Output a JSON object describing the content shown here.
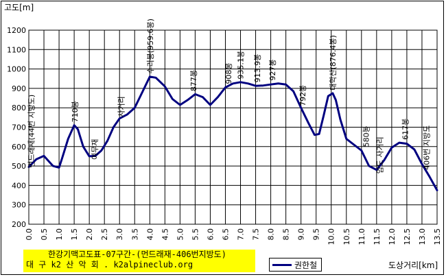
{
  "chart_data": {
    "type": "line",
    "ylabel": "고도[m]",
    "xlabel": "도상거리[km]",
    "ylim": [
      200,
      1200
    ],
    "xlim": [
      0,
      13.5
    ],
    "y_ticks": [
      "200",
      "300",
      "400",
      "500",
      "600",
      "700",
      "800",
      "900",
      "1000",
      "1100",
      "1200"
    ],
    "x_ticks": [
      "0.0",
      "0.5",
      "1.0",
      "1.5",
      "2.0",
      "2.5",
      "3.0",
      "3.5",
      "4.0",
      "4.5",
      "5.0",
      "5.5",
      "6.0",
      "6.5",
      "7.0",
      "7.5",
      "8.0",
      "8.5",
      "9.0",
      "9.5",
      "10.0",
      "10.5",
      "11.0",
      "11.5",
      "12.0",
      "12.5",
      "13.0",
      "13.5"
    ],
    "grid": true,
    "series": [
      {
        "name": "권한철",
        "color": "#000080",
        "x": [
          0,
          0.25,
          0.5,
          0.8,
          1.0,
          1.1,
          1.3,
          1.5,
          1.62,
          1.8,
          2.0,
          2.2,
          2.4,
          2.6,
          2.8,
          3.0,
          3.25,
          3.5,
          3.75,
          4.0,
          4.2,
          4.5,
          4.75,
          5.0,
          5.25,
          5.5,
          5.75,
          6.0,
          6.25,
          6.5,
          6.75,
          7.0,
          7.25,
          7.5,
          7.75,
          8.0,
          8.25,
          8.5,
          8.75,
          9.0,
          9.25,
          9.45,
          9.6,
          9.75,
          9.9,
          10.05,
          10.15,
          10.3,
          10.5,
          10.75,
          11.0,
          11.25,
          11.5,
          11.75,
          12.0,
          12.25,
          12.5,
          12.75,
          13.0,
          13.25,
          13.5
        ],
        "y": [
          495,
          535,
          552,
          500,
          492,
          540,
          640,
          710,
          690,
          600,
          550,
          552,
          580,
          630,
          700,
          745,
          765,
          800,
          880,
          960,
          955,
          910,
          845,
          815,
          840,
          870,
          855,
          815,
          855,
          905,
          925,
          932,
          925,
          913,
          915,
          920,
          925,
          920,
          885,
          800,
          720,
          660,
          665,
          760,
          860,
          875,
          840,
          740,
          640,
          610,
          580,
          500,
          480,
          530,
          595,
          620,
          615,
          585,
          510,
          445,
          375
        ]
      }
    ],
    "annotations": [
      {
        "text": "먼드래재(44번 지방도)",
        "x": 0.08,
        "y": 490
      },
      {
        "text": "710봉",
        "x": 1.52,
        "y": 725
      },
      {
        "text": "여무재",
        "x": 2.18,
        "y": 532
      },
      {
        "text": "사거리",
        "x": 3.05,
        "y": 752
      },
      {
        "text": "수리봉(959.6봉)",
        "x": 4.02,
        "y": 975
      },
      {
        "text": "877봉",
        "x": 5.45,
        "y": 885
      },
      {
        "text": "908봉",
        "x": 6.6,
        "y": 922
      },
      {
        "text": "935.1봉",
        "x": 7.0,
        "y": 947
      },
      {
        "text": "913.9봉",
        "x": 7.55,
        "y": 930
      },
      {
        "text": "927봉",
        "x": 8.05,
        "y": 940
      },
      {
        "text": "792봉",
        "x": 9.05,
        "y": 808
      },
      {
        "text": "대학산(876.4봉)",
        "x": 10.05,
        "y": 890
      },
      {
        "text": "580봉",
        "x": 11.15,
        "y": 598
      },
      {
        "text": "임도 사거리",
        "x": 11.6,
        "y": 460
      },
      {
        "text": "617봉",
        "x": 12.45,
        "y": 635
      },
      {
        "text": "406번 지방도",
        "x": 13.15,
        "y": 480
      }
    ]
  },
  "info_box": {
    "line1": "한강기맥고도표-07구간-(먼드래재-406번지방도)",
    "line2": "대 구 k2 산 악 회 . k2alpineclub.org"
  },
  "legend": {
    "label": "권한철"
  },
  "colors": {
    "line": "#000080",
    "info_bg": "#ffff00",
    "grid": "#000000"
  }
}
